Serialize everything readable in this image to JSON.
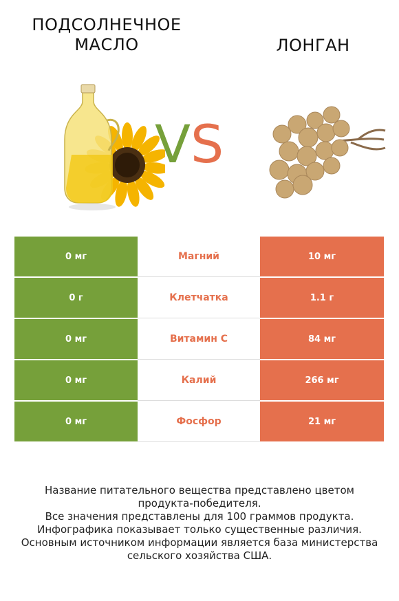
{
  "header": {
    "left_title_line1": "ПОДСОЛНЕЧНОЕ",
    "left_title_line2": "МАСЛО",
    "right_title": "ЛОНГАН",
    "vs_v": "V",
    "vs_s": "S"
  },
  "colors": {
    "left": "#76a03a",
    "right": "#e5704d"
  },
  "images": {
    "left": "sunflower-oil-bottle-icon",
    "right": "longan-fruit-cluster-icon"
  },
  "rows": [
    {
      "left": "0 мг",
      "nutrient": "Магний",
      "right": "10 мг"
    },
    {
      "left": "0 г",
      "nutrient": "Клетчатка",
      "right": "1.1 г"
    },
    {
      "left": "0 мг",
      "nutrient": "Витамин C",
      "right": "84 мг"
    },
    {
      "left": "0 мг",
      "nutrient": "Калий",
      "right": "266 мг"
    },
    {
      "left": "0 мг",
      "nutrient": "Фосфор",
      "right": "21 мг"
    }
  ],
  "footer": {
    "line1": "Название питательного вещества представлено цветом",
    "line2": "продукта-победителя.",
    "line3": "Все значения представлены для 100 граммов продукта.",
    "line4": "Инфографика показывает только существенные различия.",
    "line5": "Основным источником информации является база министерства",
    "line6": "сельского хозяйства США."
  }
}
